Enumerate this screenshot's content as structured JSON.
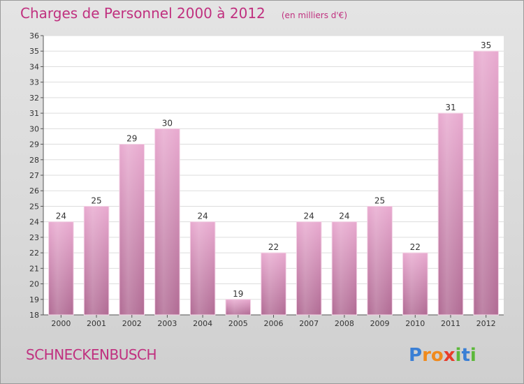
{
  "header": {
    "title": "Charges de Personnel 2000 à 2012",
    "unit": "(en milliers d'€)"
  },
  "footer": {
    "commune": "SCHNECKENBUSCH",
    "brand": "Proxiti"
  },
  "colors": {
    "title": "#c0307f",
    "bar_top": "#e8a9cf",
    "bar_bottom": "#b06a93",
    "brand_p": "#3a7fd5",
    "brand_r": "#f08a1c",
    "brand_o": "#f08a1c",
    "brand_x": "#e83c2a",
    "brand_i": "#5cb83a",
    "brand_t": "#3a7fd5"
  },
  "chart_data": {
    "type": "bar",
    "title": "Charges de Personnel 2000 à 2012",
    "subtitle": "(en milliers d'€)",
    "xlabel": "",
    "ylabel": "",
    "categories": [
      "2000",
      "2001",
      "2002",
      "2003",
      "2004",
      "2005",
      "2006",
      "2007",
      "2008",
      "2009",
      "2010",
      "2011",
      "2012"
    ],
    "values": [
      24,
      25,
      29,
      30,
      24,
      19,
      22,
      24,
      24,
      25,
      22,
      31,
      35
    ],
    "ylim": [
      18,
      36
    ],
    "yticks": [
      18,
      19,
      20,
      21,
      22,
      23,
      24,
      25,
      26,
      27,
      28,
      29,
      30,
      31,
      32,
      33,
      34,
      35,
      36
    ],
    "grid": true,
    "data_labels": true
  }
}
